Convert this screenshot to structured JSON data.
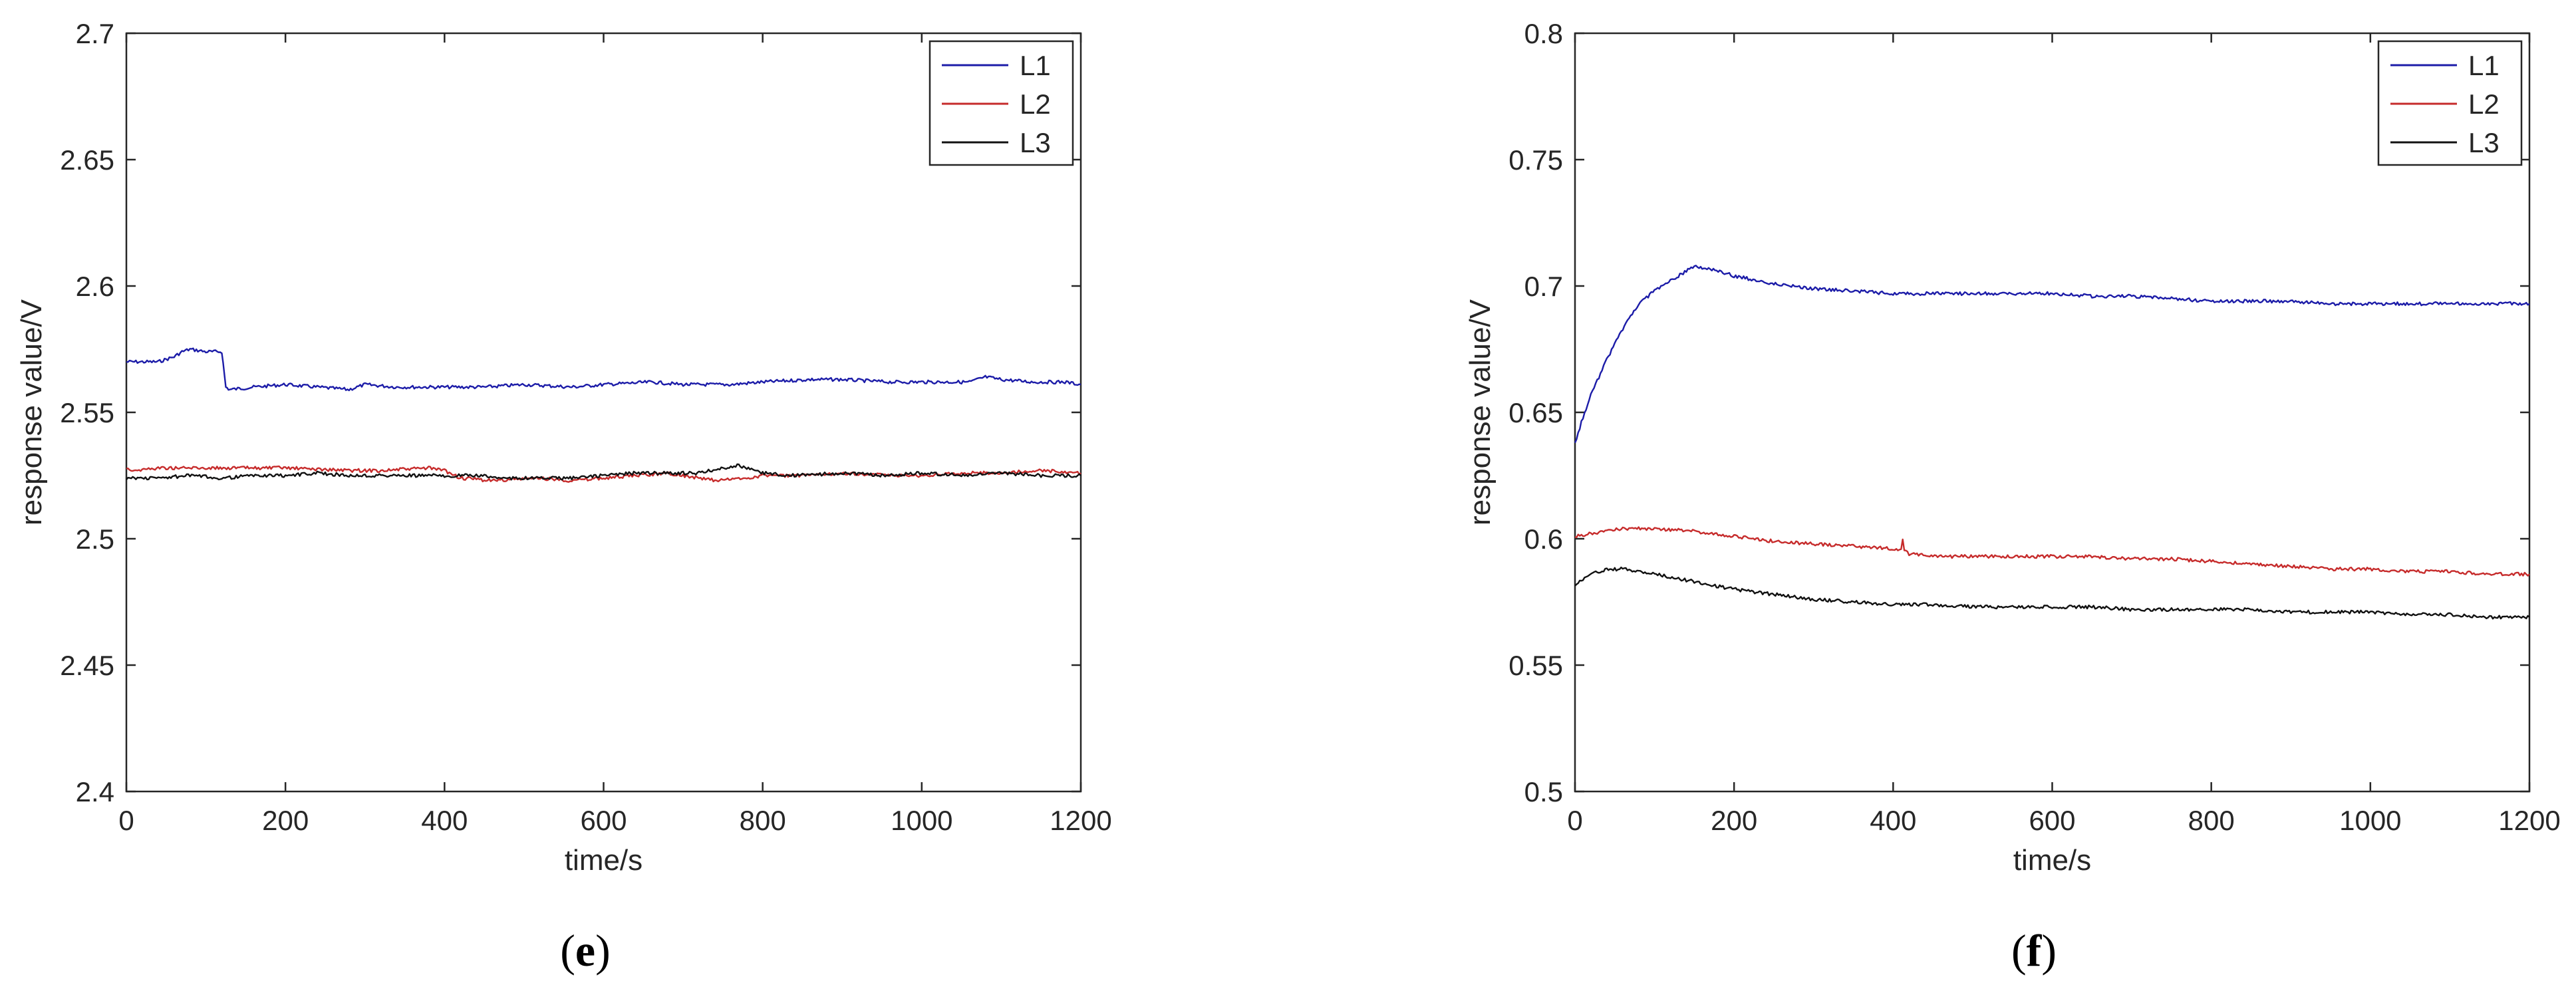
{
  "chart_data": [
    {
      "type": "line",
      "panel_label": "e",
      "xlabel": "time/s",
      "ylabel": "response value/V",
      "xlim": [
        0,
        1200
      ],
      "ylim": [
        2.4,
        2.7
      ],
      "xticks": [
        "0",
        "200",
        "400",
        "600",
        "800",
        "1000",
        "1200"
      ],
      "yticks": [
        "2.4",
        "2.45",
        "2.5",
        "2.55",
        "2.6",
        "2.65",
        "2.7"
      ],
      "legend_position": "top-right",
      "grid": false,
      "series": [
        {
          "name": "L1",
          "color": "#1c1ca8",
          "x": [
            0,
            20,
            40,
            60,
            70,
            80,
            100,
            120,
            125,
            130,
            160,
            200,
            240,
            280,
            300,
            340,
            400,
            450,
            500,
            560,
            600,
            660,
            700,
            760,
            800,
            860,
            900,
            960,
            1000,
            1060,
            1080,
            1100,
            1140,
            1180,
            1200
          ],
          "y": [
            2.57,
            2.57,
            2.57,
            2.572,
            2.574,
            2.575,
            2.574,
            2.574,
            2.56,
            2.559,
            2.56,
            2.561,
            2.56,
            2.559,
            2.561,
            2.56,
            2.56,
            2.56,
            2.561,
            2.56,
            2.561,
            2.562,
            2.561,
            2.561,
            2.562,
            2.563,
            2.563,
            2.562,
            2.562,
            2.562,
            2.564,
            2.563,
            2.562,
            2.562,
            2.561
          ]
        },
        {
          "name": "L2",
          "color": "#c62b2b",
          "x": [
            0,
            10,
            40,
            100,
            160,
            200,
            280,
            320,
            380,
            400,
            420,
            460,
            520,
            560,
            600,
            640,
            680,
            700,
            720,
            740,
            780,
            800,
            860,
            900,
            960,
            1000,
            1060,
            1100,
            1150,
            1200
          ],
          "y": [
            2.528,
            2.527,
            2.528,
            2.528,
            2.528,
            2.528,
            2.527,
            2.527,
            2.528,
            2.527,
            2.524,
            2.523,
            2.524,
            2.523,
            2.524,
            2.525,
            2.526,
            2.525,
            2.524,
            2.523,
            2.524,
            2.525,
            2.525,
            2.526,
            2.525,
            2.525,
            2.526,
            2.526,
            2.527,
            2.526
          ]
        },
        {
          "name": "L3",
          "color": "#111111",
          "x": [
            0,
            40,
            80,
            120,
            160,
            200,
            240,
            280,
            320,
            360,
            400,
            440,
            480,
            520,
            560,
            600,
            640,
            680,
            720,
            750,
            770,
            800,
            840,
            900,
            960,
            1000,
            1060,
            1100,
            1150,
            1200
          ],
          "y": [
            2.524,
            2.524,
            2.525,
            2.524,
            2.525,
            2.525,
            2.526,
            2.525,
            2.525,
            2.525,
            2.525,
            2.525,
            2.524,
            2.524,
            2.524,
            2.525,
            2.526,
            2.526,
            2.526,
            2.528,
            2.529,
            2.526,
            2.525,
            2.526,
            2.525,
            2.526,
            2.525,
            2.526,
            2.525,
            2.525
          ]
        }
      ]
    },
    {
      "type": "line",
      "panel_label": "f",
      "xlabel": "time/s",
      "ylabel": "response value/V",
      "xlim": [
        0,
        1200
      ],
      "ylim": [
        0.5,
        0.8
      ],
      "xticks": [
        "0",
        "200",
        "400",
        "600",
        "800",
        "1000",
        "1200"
      ],
      "yticks": [
        "0.5",
        "0.55",
        "0.6",
        "0.65",
        "0.7",
        "0.75",
        "0.8"
      ],
      "legend_position": "top-right",
      "grid": false,
      "series": [
        {
          "name": "L1",
          "color": "#1c1ca8",
          "x": [
            0,
            10,
            20,
            40,
            60,
            80,
            100,
            120,
            140,
            150,
            160,
            180,
            200,
            250,
            300,
            350,
            400,
            450,
            500,
            550,
            600,
            650,
            700,
            750,
            800,
            850,
            900,
            950,
            1000,
            1050,
            1100,
            1150,
            1200
          ],
          "y": [
            0.638,
            0.648,
            0.657,
            0.671,
            0.683,
            0.693,
            0.698,
            0.702,
            0.706,
            0.708,
            0.707,
            0.706,
            0.704,
            0.701,
            0.699,
            0.698,
            0.697,
            0.697,
            0.697,
            0.697,
            0.697,
            0.696,
            0.696,
            0.695,
            0.694,
            0.694,
            0.694,
            0.693,
            0.693,
            0.693,
            0.693,
            0.693,
            0.693
          ]
        },
        {
          "name": "L2",
          "color": "#c62b2b",
          "x": [
            0,
            20,
            40,
            60,
            80,
            100,
            150,
            200,
            250,
            300,
            350,
            400,
            410,
            412,
            414,
            420,
            450,
            500,
            550,
            600,
            650,
            700,
            750,
            800,
            850,
            900,
            950,
            1000,
            1050,
            1100,
            1150,
            1200
          ],
          "y": [
            0.601,
            0.602,
            0.603,
            0.604,
            0.604,
            0.604,
            0.603,
            0.601,
            0.599,
            0.598,
            0.597,
            0.596,
            0.596,
            0.6,
            0.596,
            0.594,
            0.593,
            0.593,
            0.593,
            0.593,
            0.593,
            0.592,
            0.592,
            0.591,
            0.59,
            0.589,
            0.588,
            0.588,
            0.587,
            0.587,
            0.586,
            0.586
          ]
        },
        {
          "name": "L3",
          "color": "#111111",
          "x": [
            0,
            20,
            40,
            60,
            80,
            100,
            150,
            200,
            250,
            300,
            350,
            400,
            450,
            500,
            550,
            600,
            650,
            700,
            750,
            800,
            850,
            900,
            950,
            1000,
            1050,
            1100,
            1150,
            1200
          ],
          "y": [
            0.582,
            0.586,
            0.588,
            0.588,
            0.587,
            0.586,
            0.583,
            0.58,
            0.578,
            0.576,
            0.575,
            0.574,
            0.574,
            0.573,
            0.573,
            0.573,
            0.573,
            0.572,
            0.572,
            0.572,
            0.572,
            0.571,
            0.571,
            0.571,
            0.57,
            0.57,
            0.569,
            0.569
          ]
        }
      ]
    }
  ],
  "captions": {
    "e": {
      "open": "(",
      "letter": "e",
      "close": ")"
    },
    "f": {
      "open": "(",
      "letter": "f",
      "close": ")"
    }
  }
}
